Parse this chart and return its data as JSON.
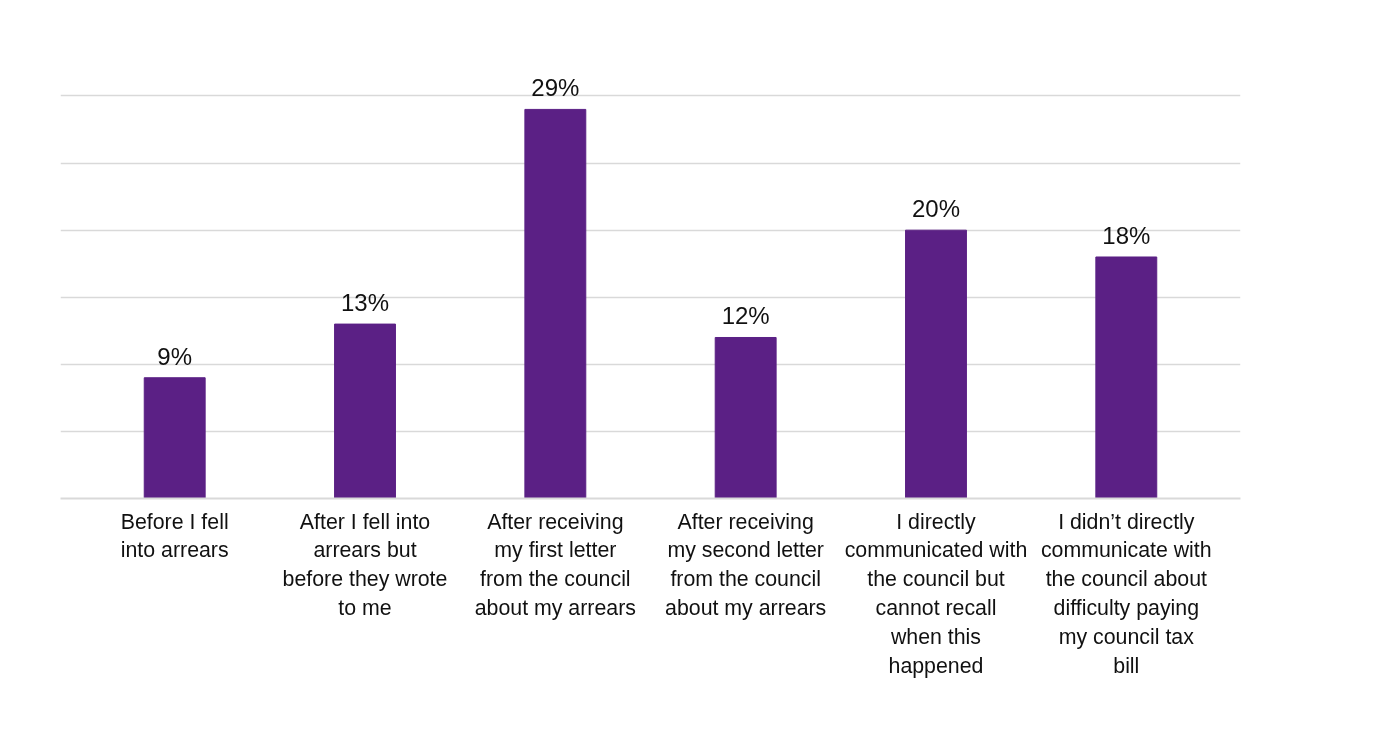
{
  "chart_data": {
    "type": "bar",
    "categories": [
      "Before I fell into arrears",
      "After I fell into arrears but before they wrote to me",
      "After receiving my first letter from the council about my arrears",
      "After receiving my second letter from the council about my arrears",
      "I directly communicated with the council but cannot recall when this happened",
      "I didn’t directly communicate with the council about difficulty paying my council tax bill"
    ],
    "values": [
      9,
      13,
      29,
      12,
      20,
      18
    ],
    "value_labels": [
      "9%",
      "13%",
      "29%",
      "12%",
      "20%",
      "18%"
    ],
    "color": "#5b2085",
    "grid": "y",
    "tick_labels": "x"
  }
}
